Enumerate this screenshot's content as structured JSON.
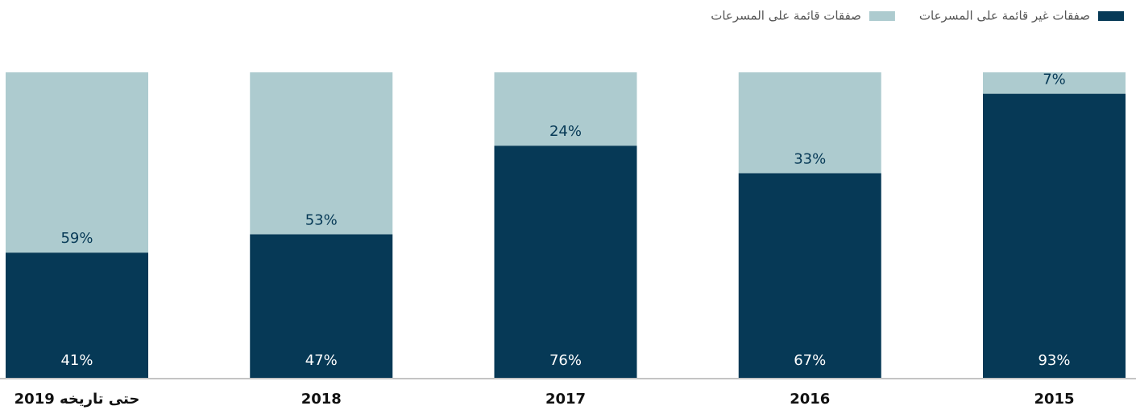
{
  "chart_data": {
    "type": "bar",
    "stacked": true,
    "categories": [
      "2019 حتى تاريخه",
      "2018",
      "2017",
      "2016",
      "2015"
    ],
    "series": [
      {
        "name": "صفقات غير قائمة على المسرعات",
        "color": "#063956",
        "values": [
          41,
          47,
          76,
          67,
          93
        ],
        "value_labels": [
          "41%",
          "47%",
          "76%",
          "67%",
          "93%"
        ]
      },
      {
        "name": "صفقات قائمة على المسرعات",
        "color": "#adcbcf",
        "values": [
          59,
          53,
          24,
          33,
          7
        ],
        "value_labels": [
          "59%",
          "53%",
          "24%",
          "33%",
          "7%"
        ]
      }
    ],
    "ylim": [
      0,
      100
    ],
    "legend": "top-right"
  }
}
